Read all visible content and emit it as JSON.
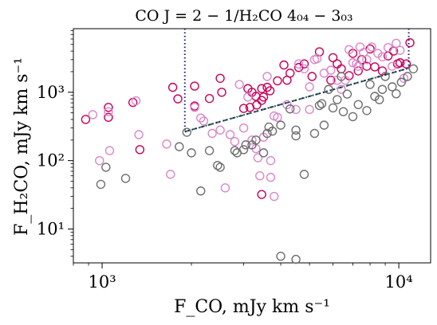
{
  "chart_data": {
    "type": "scatter",
    "title": "CO J = 2 − 1/H₂CO 4₀₄ − 3₀₃",
    "xlabel": "F_CO, mJy km s⁻¹",
    "ylabel": "F_H₂CO, mJy km s⁻¹",
    "xscale": "log",
    "yscale": "log",
    "xlim": [
      800,
      12800
    ],
    "ylim": [
      3.2,
      8500
    ],
    "xticks": [
      {
        "value": 1000,
        "label": "10³"
      },
      {
        "value": 10000,
        "label": "10⁴"
      }
    ],
    "yticks": [
      {
        "value": 10,
        "label": "10¹"
      },
      {
        "value": 100,
        "label": "10²"
      },
      {
        "value": 1000,
        "label": "10³"
      }
    ],
    "grid": false,
    "legend": "none",
    "series": [
      {
        "color": "#c8005a",
        "marker": "open-circle",
        "points": [
          [
            880,
            400
          ],
          [
            1050,
            430
          ],
          [
            1050,
            600
          ],
          [
            1270,
            710
          ],
          [
            1340,
            145
          ],
          [
            1730,
            1180
          ],
          [
            1800,
            800
          ],
          [
            2050,
            1230
          ],
          [
            2050,
            630
          ],
          [
            2500,
            1600
          ],
          [
            2530,
            1000
          ],
          [
            3100,
            1130
          ],
          [
            3200,
            1000
          ],
          [
            3300,
            870
          ],
          [
            3450,
            1130
          ],
          [
            3600,
            1180
          ],
          [
            3150,
            600
          ],
          [
            3000,
            580
          ],
          [
            3320,
            650
          ],
          [
            3450,
            760
          ],
          [
            3500,
            850
          ],
          [
            3680,
            1050
          ],
          [
            3900,
            1470
          ],
          [
            4100,
            2500
          ],
          [
            4300,
            1900
          ],
          [
            4800,
            2600
          ],
          [
            5100,
            1700
          ],
          [
            5400,
            3900
          ],
          [
            5900,
            1500
          ],
          [
            6200,
            2600
          ],
          [
            6800,
            1750
          ],
          [
            7000,
            3700
          ],
          [
            7300,
            2050
          ],
          [
            7500,
            3000
          ],
          [
            7800,
            2400
          ],
          [
            8300,
            2350
          ],
          [
            8800,
            2050
          ],
          [
            9200,
            3400
          ],
          [
            9900,
            2600
          ],
          [
            10100,
            2700
          ],
          [
            10600,
            2600
          ],
          [
            10900,
            5300
          ],
          [
            4200,
            1500
          ],
          [
            3450,
            32
          ],
          [
            4600,
            2300
          ],
          [
            6000,
            3200
          ],
          [
            6400,
            2200
          ],
          [
            8000,
            4300
          ],
          [
            9600,
            4000
          ],
          [
            2300,
            810
          ]
        ]
      },
      {
        "color": "#d988cc",
        "marker": "open-circle",
        "points": [
          [
            930,
            470
          ],
          [
            980,
            100
          ],
          [
            1050,
            520
          ],
          [
            1060,
            140
          ],
          [
            1300,
            750
          ],
          [
            1330,
            240
          ],
          [
            1650,
            175
          ],
          [
            1700,
            63
          ],
          [
            2050,
            600
          ],
          [
            2150,
            420
          ],
          [
            2350,
            250
          ],
          [
            2600,
            40
          ],
          [
            2700,
            240
          ],
          [
            2800,
            190
          ],
          [
            3000,
            300
          ],
          [
            3200,
            200
          ],
          [
            3300,
            150
          ],
          [
            3350,
            110
          ],
          [
            3400,
            60
          ],
          [
            3500,
            220
          ],
          [
            3700,
            100
          ],
          [
            3800,
            30
          ],
          [
            3900,
            430
          ],
          [
            4200,
            660
          ],
          [
            4500,
            560
          ],
          [
            4600,
            2600
          ],
          [
            5000,
            1200
          ],
          [
            5200,
            3000
          ],
          [
            5300,
            3100
          ],
          [
            5600,
            1900
          ],
          [
            5900,
            2100
          ],
          [
            6200,
            1500
          ],
          [
            6400,
            1100
          ],
          [
            6600,
            1500
          ],
          [
            6800,
            4200
          ],
          [
            7000,
            2700
          ],
          [
            7200,
            2600
          ],
          [
            7400,
            4600
          ],
          [
            7600,
            3800
          ],
          [
            7800,
            3000
          ],
          [
            8100,
            4600
          ],
          [
            8500,
            3700
          ],
          [
            8800,
            3300
          ],
          [
            9200,
            4500
          ],
          [
            9500,
            2400
          ],
          [
            9800,
            5200
          ],
          [
            10100,
            4100
          ],
          [
            10400,
            1600
          ],
          [
            3100,
            850
          ],
          [
            2900,
            1300
          ],
          [
            3600,
            1700
          ],
          [
            3800,
            450
          ],
          [
            4800,
            2200
          ],
          [
            2500,
            280
          ],
          [
            2200,
            380
          ],
          [
            3700,
            57
          ],
          [
            5000,
            560
          ],
          [
            7300,
            2400
          ]
        ]
      },
      {
        "color": "#6e6e6e",
        "marker": "open-circle",
        "points": [
          [
            990,
            45
          ],
          [
            1030,
            80
          ],
          [
            1200,
            55
          ],
          [
            1820,
            160
          ],
          [
            1930,
            260
          ],
          [
            2000,
            130
          ],
          [
            2150,
            36
          ],
          [
            2300,
            140
          ],
          [
            2450,
            85
          ],
          [
            2500,
            80
          ],
          [
            2800,
            140
          ],
          [
            2850,
            130
          ],
          [
            3000,
            145
          ],
          [
            3050,
            170
          ],
          [
            3200,
            170
          ],
          [
            3300,
            200
          ],
          [
            3500,
            130
          ],
          [
            3600,
            250
          ],
          [
            3650,
            310
          ],
          [
            3750,
            270
          ],
          [
            4000,
            4
          ],
          [
            4500,
            3.6
          ],
          [
            4300,
            570
          ],
          [
            4500,
            280
          ],
          [
            4800,
            63
          ],
          [
            5200,
            250
          ],
          [
            5500,
            680
          ],
          [
            5600,
            330
          ],
          [
            5800,
            1100
          ],
          [
            6000,
            590
          ],
          [
            6200,
            780
          ],
          [
            6500,
            520
          ],
          [
            6700,
            940
          ],
          [
            7000,
            440
          ],
          [
            7300,
            660
          ],
          [
            7800,
            540
          ],
          [
            8000,
            1300
          ],
          [
            8300,
            870
          ],
          [
            8600,
            780
          ],
          [
            9000,
            1700
          ],
          [
            9500,
            1200
          ],
          [
            9800,
            950
          ],
          [
            10200,
            1400
          ],
          [
            10700,
            1700
          ],
          [
            11200,
            2200
          ],
          [
            6400,
            1700
          ],
          [
            5400,
            640
          ],
          [
            4000,
            330
          ],
          [
            8800,
            1100
          ],
          [
            4500,
            230
          ]
        ]
      }
    ],
    "annotations": [
      {
        "kind": "dashed-line",
        "color": "#2f6b45",
        "from": [
          1900,
          265
        ],
        "to": [
          10800,
          2250
        ]
      },
      {
        "kind": "dotted-line",
        "color": "#1a1a6e",
        "from": [
          1900,
          265
        ],
        "to": [
          10800,
          2250
        ]
      },
      {
        "kind": "dotted-line",
        "color": "#1a1a6e",
        "from": [
          1900,
          8500
        ],
        "to": [
          1900,
          265
        ]
      },
      {
        "kind": "dotted-line",
        "color": "#1a1a6e",
        "from": [
          10800,
          8500
        ],
        "to": [
          10800,
          2250
        ]
      }
    ]
  }
}
